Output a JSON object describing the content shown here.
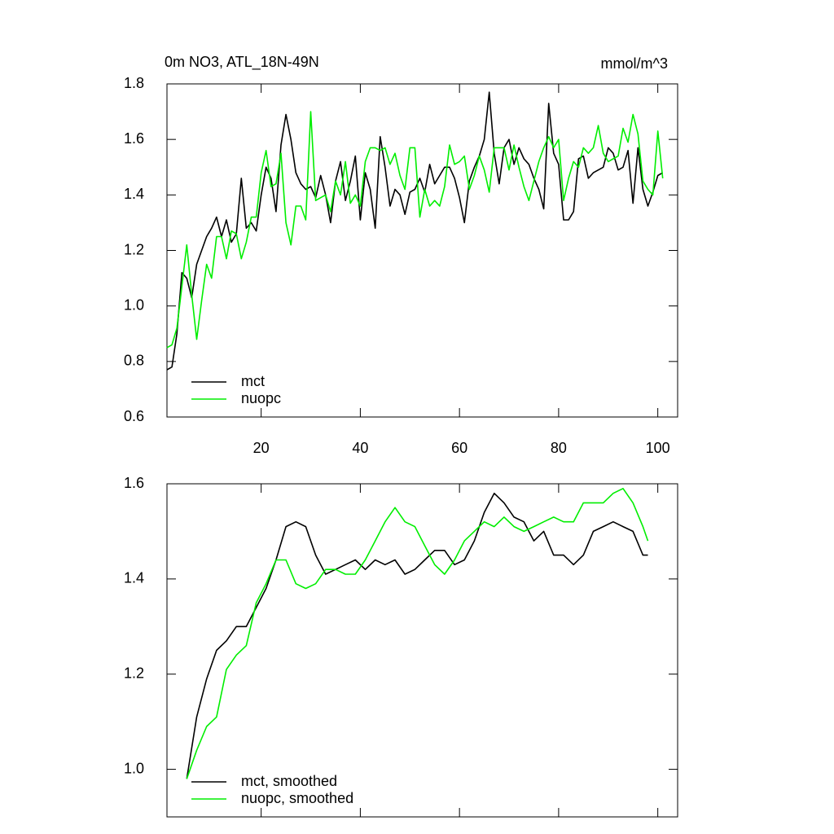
{
  "chart_data": [
    {
      "type": "line",
      "title": "0m NO3, ATL_18N-49N",
      "subtitle": "mmol/m^3",
      "x": [
        1,
        2,
        3,
        4,
        5,
        6,
        7,
        8,
        9,
        10,
        11,
        12,
        13,
        14,
        15,
        16,
        17,
        18,
        19,
        20,
        21,
        22,
        23,
        24,
        25,
        26,
        27,
        28,
        29,
        30,
        31,
        32,
        33,
        34,
        35,
        36,
        37,
        38,
        39,
        40,
        41,
        42,
        43,
        44,
        45,
        46,
        47,
        48,
        49,
        50,
        51,
        52,
        53,
        54,
        55,
        56,
        57,
        58,
        59,
        60,
        61,
        62,
        63,
        64,
        65,
        66,
        67,
        68,
        69,
        70,
        71,
        72,
        73,
        74,
        75,
        76,
        77,
        78,
        79,
        80,
        81,
        82,
        83,
        84,
        85,
        86,
        87,
        88,
        89,
        90,
        91,
        92,
        93,
        94,
        95,
        96,
        97,
        98,
        99,
        100,
        101
      ],
      "series": [
        {
          "name": "mct",
          "color": "#000000",
          "values": [
            0.77,
            0.78,
            0.9,
            1.12,
            1.1,
            1.03,
            1.15,
            1.2,
            1.25,
            1.28,
            1.32,
            1.25,
            1.31,
            1.23,
            1.26,
            1.46,
            1.28,
            1.3,
            1.27,
            1.4,
            1.5,
            1.46,
            1.34,
            1.58,
            1.69,
            1.6,
            1.48,
            1.44,
            1.42,
            1.43,
            1.39,
            1.47,
            1.4,
            1.3,
            1.45,
            1.52,
            1.38,
            1.45,
            1.54,
            1.31,
            1.48,
            1.42,
            1.28,
            1.61,
            1.5,
            1.36,
            1.42,
            1.4,
            1.33,
            1.41,
            1.42,
            1.46,
            1.41,
            1.51,
            1.44,
            1.47,
            1.5,
            1.5,
            1.46,
            1.39,
            1.3,
            1.45,
            1.5,
            1.54,
            1.6,
            1.77,
            1.55,
            1.44,
            1.57,
            1.6,
            1.51,
            1.57,
            1.53,
            1.51,
            1.46,
            1.42,
            1.35,
            1.73,
            1.55,
            1.51,
            1.31,
            1.31,
            1.34,
            1.53,
            1.54,
            1.46,
            1.48,
            1.49,
            1.5,
            1.57,
            1.55,
            1.49,
            1.5,
            1.56,
            1.37,
            1.57,
            1.42,
            1.36,
            1.41,
            1.47,
            1.48
          ]
        },
        {
          "name": "nuopc",
          "color": "#00ee00",
          "values": [
            0.85,
            0.86,
            0.92,
            1.07,
            1.22,
            1.04,
            0.88,
            1.02,
            1.15,
            1.1,
            1.25,
            1.25,
            1.17,
            1.27,
            1.26,
            1.17,
            1.23,
            1.32,
            1.32,
            1.48,
            1.56,
            1.43,
            1.44,
            1.55,
            1.3,
            1.22,
            1.36,
            1.36,
            1.31,
            1.7,
            1.38,
            1.39,
            1.4,
            1.34,
            1.45,
            1.4,
            1.52,
            1.37,
            1.4,
            1.36,
            1.52,
            1.57,
            1.57,
            1.56,
            1.57,
            1.51,
            1.55,
            1.47,
            1.42,
            1.57,
            1.57,
            1.32,
            1.42,
            1.36,
            1.38,
            1.36,
            1.43,
            1.58,
            1.51,
            1.52,
            1.54,
            1.42,
            1.47,
            1.54,
            1.49,
            1.41,
            1.57,
            1.57,
            1.57,
            1.49,
            1.58,
            1.5,
            1.43,
            1.38,
            1.45,
            1.52,
            1.57,
            1.61,
            1.57,
            1.6,
            1.38,
            1.46,
            1.52,
            1.5,
            1.57,
            1.55,
            1.57,
            1.65,
            1.55,
            1.52,
            1.53,
            1.54,
            1.64,
            1.59,
            1.69,
            1.62,
            1.45,
            1.42,
            1.4,
            1.63,
            1.46
          ]
        }
      ],
      "xlim": [
        1,
        104
      ],
      "xticks": [
        20,
        40,
        60,
        80,
        100
      ],
      "ylim": [
        0.6,
        1.8
      ],
      "yticks": [
        0.6,
        0.8,
        {
          "value": 1,
          "label": "1.0"
        },
        1.2,
        1.4,
        1.6,
        1.8
      ],
      "legend": "lower left"
    },
    {
      "type": "line",
      "x": [
        5,
        7,
        9,
        11,
        13,
        15,
        17,
        19,
        21,
        23,
        25,
        27,
        29,
        31,
        33,
        35,
        37,
        39,
        41,
        43,
        45,
        47,
        49,
        51,
        53,
        55,
        57,
        59,
        61,
        63,
        65,
        67,
        69,
        71,
        73,
        75,
        77,
        79,
        81,
        83,
        85,
        87,
        89,
        91,
        93,
        95,
        97,
        98
      ],
      "series": [
        {
          "name": "mct, smoothed",
          "color": "#000000",
          "values": [
            0.98,
            1.11,
            1.19,
            1.25,
            1.27,
            1.3,
            1.3,
            1.34,
            1.38,
            1.44,
            1.51,
            1.52,
            1.51,
            1.45,
            1.41,
            1.42,
            1.43,
            1.44,
            1.42,
            1.44,
            1.43,
            1.44,
            1.41,
            1.42,
            1.44,
            1.46,
            1.46,
            1.43,
            1.44,
            1.48,
            1.54,
            1.58,
            1.56,
            1.53,
            1.52,
            1.48,
            1.5,
            1.45,
            1.45,
            1.43,
            1.45,
            1.5,
            1.51,
            1.52,
            1.51,
            1.5,
            1.45,
            1.45
          ]
        },
        {
          "name": "nuopc, smoothed",
          "color": "#00ee00",
          "values": [
            0.98,
            1.04,
            1.09,
            1.11,
            1.21,
            1.24,
            1.26,
            1.35,
            1.39,
            1.44,
            1.44,
            1.39,
            1.38,
            1.39,
            1.42,
            1.42,
            1.41,
            1.41,
            1.44,
            1.48,
            1.52,
            1.55,
            1.52,
            1.51,
            1.47,
            1.43,
            1.41,
            1.44,
            1.48,
            1.5,
            1.52,
            1.51,
            1.53,
            1.51,
            1.5,
            1.51,
            1.52,
            1.53,
            1.52,
            1.52,
            1.56,
            1.56,
            1.56,
            1.58,
            1.59,
            1.56,
            1.51,
            1.48
          ]
        }
      ],
      "xlim": [
        1,
        104
      ],
      "xticks": [
        20,
        40,
        60,
        80,
        100
      ],
      "xtick_labels": false,
      "ylim": [
        0.9,
        1.6
      ],
      "yticks": [
        {
          "value": 1,
          "label": "1.0"
        },
        1.2,
        1.4,
        1.6
      ],
      "legend": "lower left"
    }
  ]
}
